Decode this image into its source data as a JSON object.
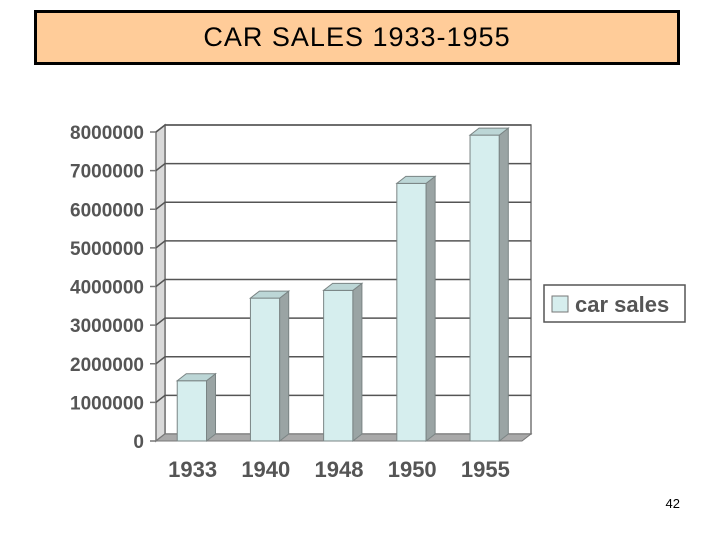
{
  "slide": {
    "page_number": "42"
  },
  "chart_data": {
    "type": "bar",
    "title": "CAR SALES 1933-1955",
    "categories": [
      "1933",
      "1940",
      "1948",
      "1950",
      "1955"
    ],
    "series": [
      {
        "name": "car sales",
        "values": [
          1560000,
          3700000,
          3900000,
          6670000,
          7920000
        ]
      }
    ],
    "ylim": [
      0,
      8000000
    ],
    "y_ticks": [
      "0",
      "1000000",
      "2000000",
      "3000000",
      "4000000",
      "5000000",
      "6000000",
      "7000000",
      "8000000"
    ],
    "grid": true,
    "three_d": true,
    "legend_position": "right",
    "colors": {
      "bar_front": "#d6eeee",
      "bar_side": "#9aa4a4",
      "bar_top": "#bcd6d6",
      "gridline": "#555555",
      "floor": "#a9a9a9",
      "title_bg": "#ffcc99"
    }
  }
}
